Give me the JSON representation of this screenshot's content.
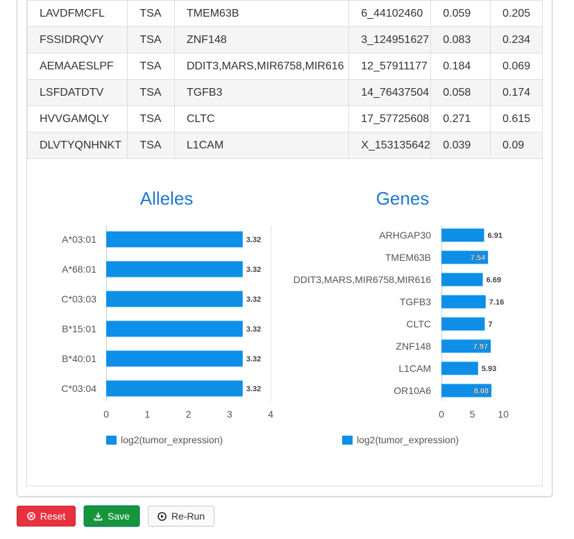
{
  "table": {
    "rows": [
      [
        "LAVDFMCFL",
        "TSA",
        "TMEM63B",
        "6_44102460",
        "0.059",
        "0.205"
      ],
      [
        "FSSIDRQVY",
        "TSA",
        "ZNF148",
        "3_124951627",
        "0.083",
        "0.234"
      ],
      [
        "AEMAAESLPF",
        "TSA",
        "DDIT3,MARS,MIR6758,MIR616",
        "12_57911177",
        "0.184",
        "0.069"
      ],
      [
        "LSFDATDTV",
        "TSA",
        "TGFB3",
        "14_76437504",
        "0.058",
        "0.174"
      ],
      [
        "HVVGAMQLY",
        "TSA",
        "CLTC",
        "17_57725608",
        "0.271",
        "0.615"
      ],
      [
        "DLVTYQNHNKT",
        "TSA",
        "L1CAM",
        "X_153135642",
        "0.039",
        "0.09"
      ]
    ]
  },
  "chart_data": [
    {
      "type": "bar",
      "orientation": "horizontal",
      "title": "Alleles",
      "categories": [
        "A*03:01",
        "A*68:01",
        "C*03:03",
        "B*15:01",
        "B*40:01",
        "C*03:04"
      ],
      "series": [
        {
          "name": "log2(tumor_expression)",
          "values": [
            3.32,
            3.32,
            3.32,
            3.32,
            3.32,
            3.32
          ]
        }
      ],
      "data_labels": [
        "3.32",
        "3.32",
        "3.32",
        "3.32",
        "3.32",
        "3.32"
      ],
      "xticks": [
        0,
        1,
        2,
        3,
        4
      ],
      "xlim": [
        0,
        4
      ],
      "color": "#0d8fe8",
      "legend": "bottom"
    },
    {
      "type": "bar",
      "orientation": "horizontal",
      "title": "Genes",
      "categories": [
        "ARHGAP30",
        "TMEM63B",
        "DDIT3,MARS,MIR6758,MIR616",
        "TGFB3",
        "CLTC",
        "ZNF148",
        "L1CAM",
        "OR10A6"
      ],
      "series": [
        {
          "name": "log2(tumor_expression)",
          "values": [
            6.91,
            7.54,
            6.69,
            7.16,
            7,
            7.97,
            5.93,
            8.08
          ]
        }
      ],
      "data_labels": [
        "6.91",
        "7.54",
        "6.69",
        "7.16",
        "7",
        "7.97",
        "5.93",
        "8.08"
      ],
      "xticks": [
        0,
        5,
        10
      ],
      "xlim": [
        0,
        11
      ],
      "color": "#0d8fe8",
      "legend": "bottom"
    }
  ],
  "buttons": {
    "reset": "Reset",
    "save": "Save",
    "rerun": "Re-Run"
  },
  "colors": {
    "title": "#1f77d6",
    "bar": "#0d8fe8",
    "reset": "#e8313f",
    "save": "#16963c"
  }
}
